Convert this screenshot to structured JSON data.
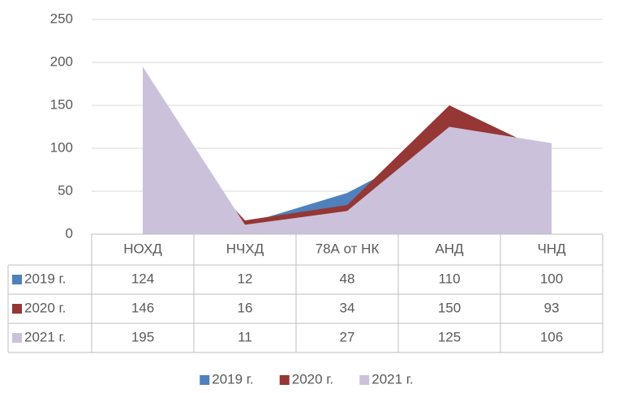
{
  "chart_data": {
    "type": "area",
    "categories": [
      "НОХД",
      "НЧХД",
      "78А от НК",
      "АНД",
      "ЧНД"
    ],
    "series": [
      {
        "name": "2019 г.",
        "color": "#4f81bd",
        "values": [
          124,
          12,
          48,
          110,
          100
        ]
      },
      {
        "name": "2020 г.",
        "color": "#953735",
        "values": [
          146,
          16,
          34,
          150,
          93
        ]
      },
      {
        "name": "2021 г.",
        "color": "#ccc1da",
        "values": [
          195,
          11,
          27,
          125,
          106
        ]
      }
    ],
    "ylim": [
      0,
      250
    ],
    "yticks": [
      0,
      50,
      100,
      150,
      200,
      250
    ],
    "grid": true,
    "legend": "bottom",
    "data_table": true
  }
}
